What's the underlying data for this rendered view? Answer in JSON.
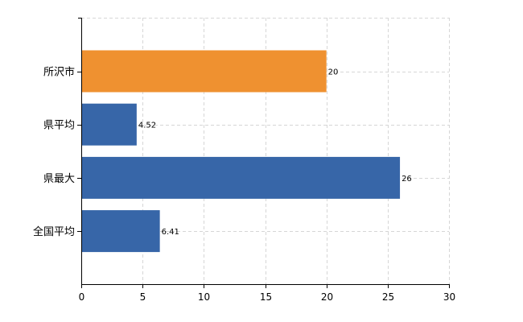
{
  "chart_data": {
    "type": "bar",
    "orientation": "horizontal",
    "categories": [
      "所沢市",
      "県平均",
      "県最大",
      "全国平均"
    ],
    "values": [
      20,
      4.52,
      26,
      6.41
    ],
    "data_labels": [
      "20",
      "4.52",
      "26",
      "6.41"
    ],
    "bar_colors": [
      "#ef9130",
      "#3766a8",
      "#3766a8",
      "#3766a8"
    ],
    "xlim": [
      0,
      30
    ],
    "x_ticks": [
      "0",
      "5",
      "10",
      "15",
      "20",
      "25",
      "30"
    ],
    "title": "",
    "xlabel": "",
    "ylabel": "",
    "grid": true
  }
}
